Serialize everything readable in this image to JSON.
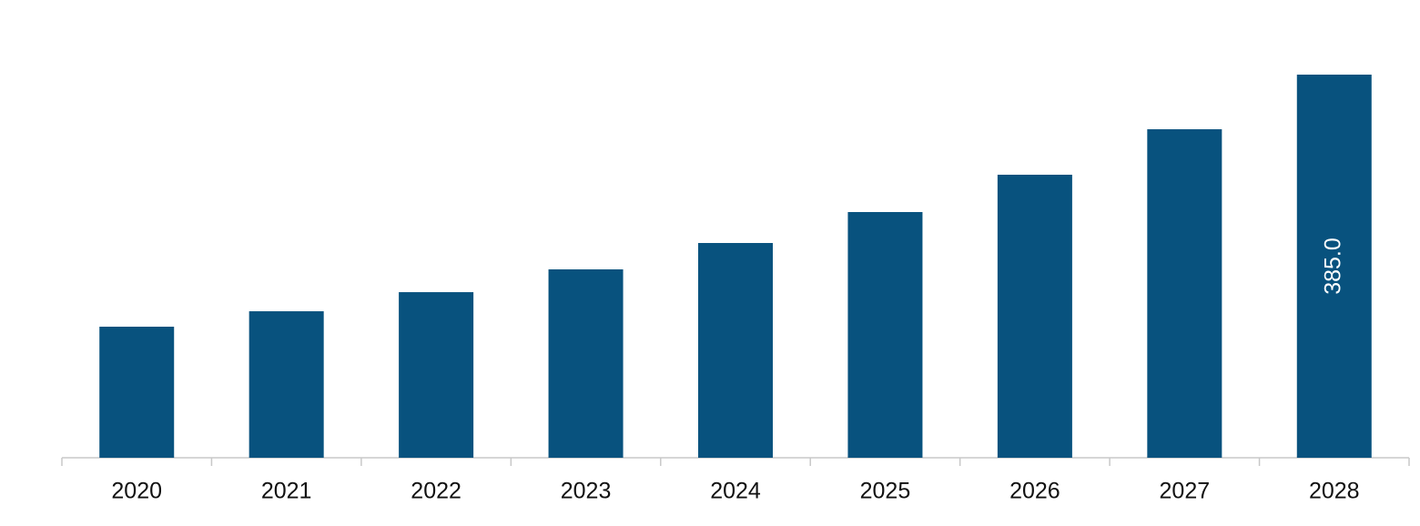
{
  "chart_data": {
    "type": "bar",
    "categories": [
      "2020",
      "2021",
      "2022",
      "2023",
      "2024",
      "2025",
      "2026",
      "2027",
      "2028"
    ],
    "values": [
      131.7,
      147.2,
      166.4,
      189.3,
      215.8,
      246.9,
      284.4,
      330.1,
      385
    ],
    "value_labels": [
      null,
      null,
      null,
      null,
      null,
      null,
      null,
      null,
      "385.0"
    ],
    "color": "#08527e"
  }
}
